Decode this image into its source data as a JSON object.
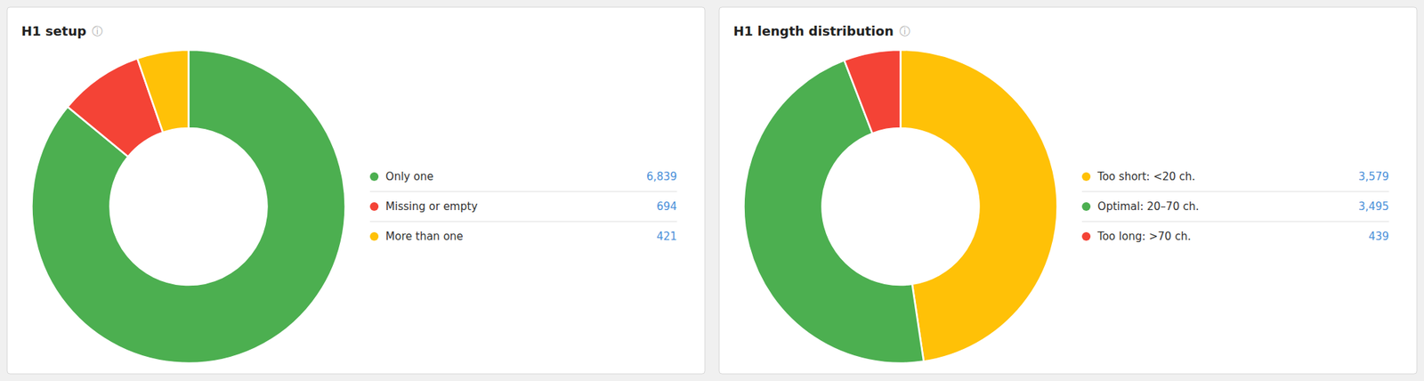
{
  "chart_data": [
    {
      "type": "donut",
      "title": "H1 setup",
      "annotations": [
        "ⓘ"
      ],
      "categories": [
        "Only one",
        "Missing or empty",
        "More than one"
      ],
      "values": [
        6839,
        694,
        421
      ],
      "value_labels": [
        "6,839",
        "694",
        "421"
      ],
      "colors": [
        "#4caf50",
        "#f44336",
        "#ffc107"
      ],
      "legend": "right"
    },
    {
      "type": "donut",
      "title": "H1 length distribution",
      "annotations": [
        "ⓘ"
      ],
      "categories": [
        "Too short: <20 ch.",
        "Optimal: 20–70 ch.",
        "Too long: >70 ch."
      ],
      "values": [
        3579,
        3495,
        439
      ],
      "value_labels": [
        "3,579",
        "3,495",
        "439"
      ],
      "colors": [
        "#ffc107",
        "#4caf50",
        "#f44336"
      ],
      "legend": "right"
    }
  ]
}
